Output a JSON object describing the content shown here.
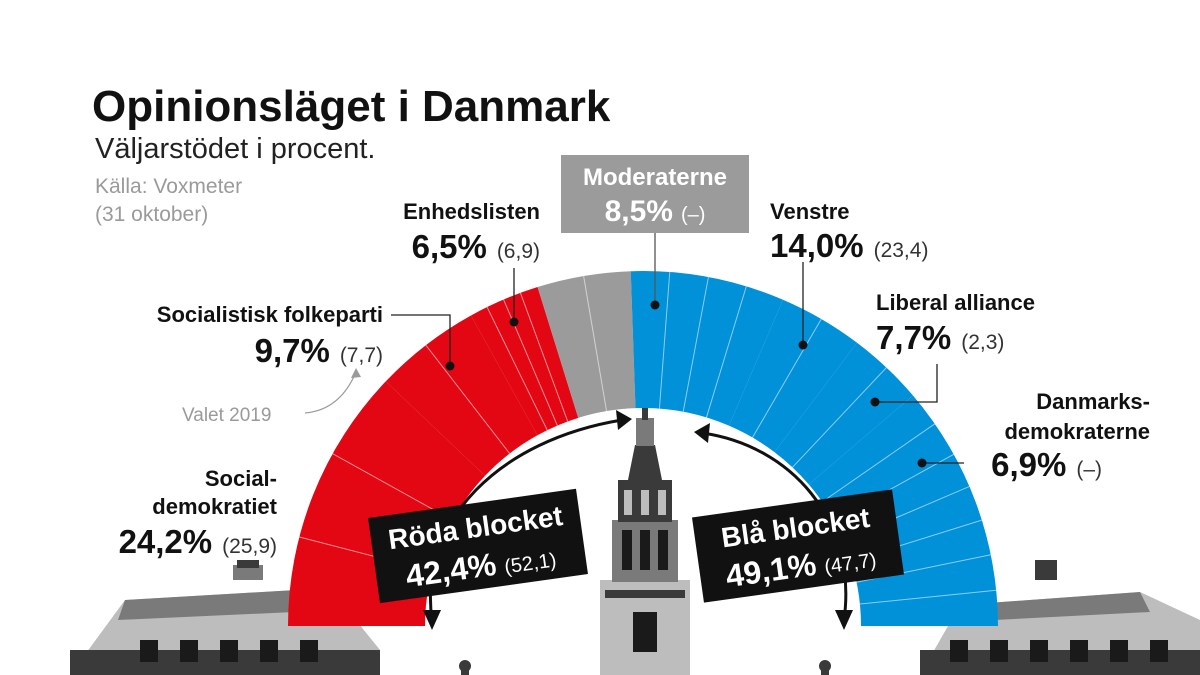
{
  "header": {
    "title": "Opinionsläget i Danmark",
    "subtitle": "Väljarstödet i procent.",
    "source_line1": "Källa: Voxmeter",
    "source_line2": "(31 oktober)"
  },
  "colors": {
    "red": "#e30613",
    "blue": "#0091d9",
    "grey": "#9b9b9b",
    "text": "#111111",
    "muted": "#9a9a9a"
  },
  "chart_data": {
    "type": "semicircle",
    "title": "Opinionsläget i Danmark",
    "subtitle": "Väljarstödet i procent.",
    "source": "Källa: Voxmeter (31 oktober)",
    "note": "Valet 2019",
    "series": [
      {
        "party_line1": "Social-",
        "party_line2": "demokratiet",
        "value": 24.2,
        "value_label": "24,2%",
        "previous_label": "(25,9)",
        "bloc": "red",
        "sublines": 2
      },
      {
        "party_line1": "Socialistisk folkeparti",
        "party_line2": "",
        "value": 9.7,
        "value_label": "9,7%",
        "previous_label": "(7,7)",
        "bloc": "red",
        "sublines": 1
      },
      {
        "party_line1": "Enhedslisten",
        "party_line2": "",
        "value": 6.5,
        "value_label": "6,5%",
        "previous_label": "(6,9)",
        "bloc": "red",
        "sublines": 3
      },
      {
        "party_line1": "Moderaterne",
        "party_line2": "",
        "value": 8.5,
        "value_label": "8,5%",
        "previous_label": "(–)",
        "bloc": "none",
        "sublines": 1
      },
      {
        "party_line1": "Venstre",
        "party_line2": "",
        "value": 14.0,
        "value_label": "14,0%",
        "previous_label": "(23,4)",
        "bloc": "blue",
        "sublines": 3
      },
      {
        "party_line1": "Liberal alliance",
        "party_line2": "",
        "value": 7.7,
        "value_label": "7,7%",
        "previous_label": "(2,3)",
        "bloc": "blue",
        "sublines": 1
      },
      {
        "party_line1": "Danmarks-",
        "party_line2": "demokraterne",
        "value": 6.9,
        "value_label": "6,9%",
        "previous_label": "(–)",
        "bloc": "blue",
        "sublines": 1
      },
      {
        "party_line1": "",
        "party_line2": "",
        "value": 22.5,
        "value_label": "",
        "previous_label": "",
        "bloc": "blue",
        "sublines": 6
      }
    ],
    "blocs": [
      {
        "name": "Röda blocket",
        "value": 42.4,
        "value_label": "42,4%",
        "previous_label": "(52,1)"
      },
      {
        "name": "Blå blocket",
        "value": 49.1,
        "value_label": "49,1%",
        "previous_label": "(47,7)"
      }
    ]
  }
}
